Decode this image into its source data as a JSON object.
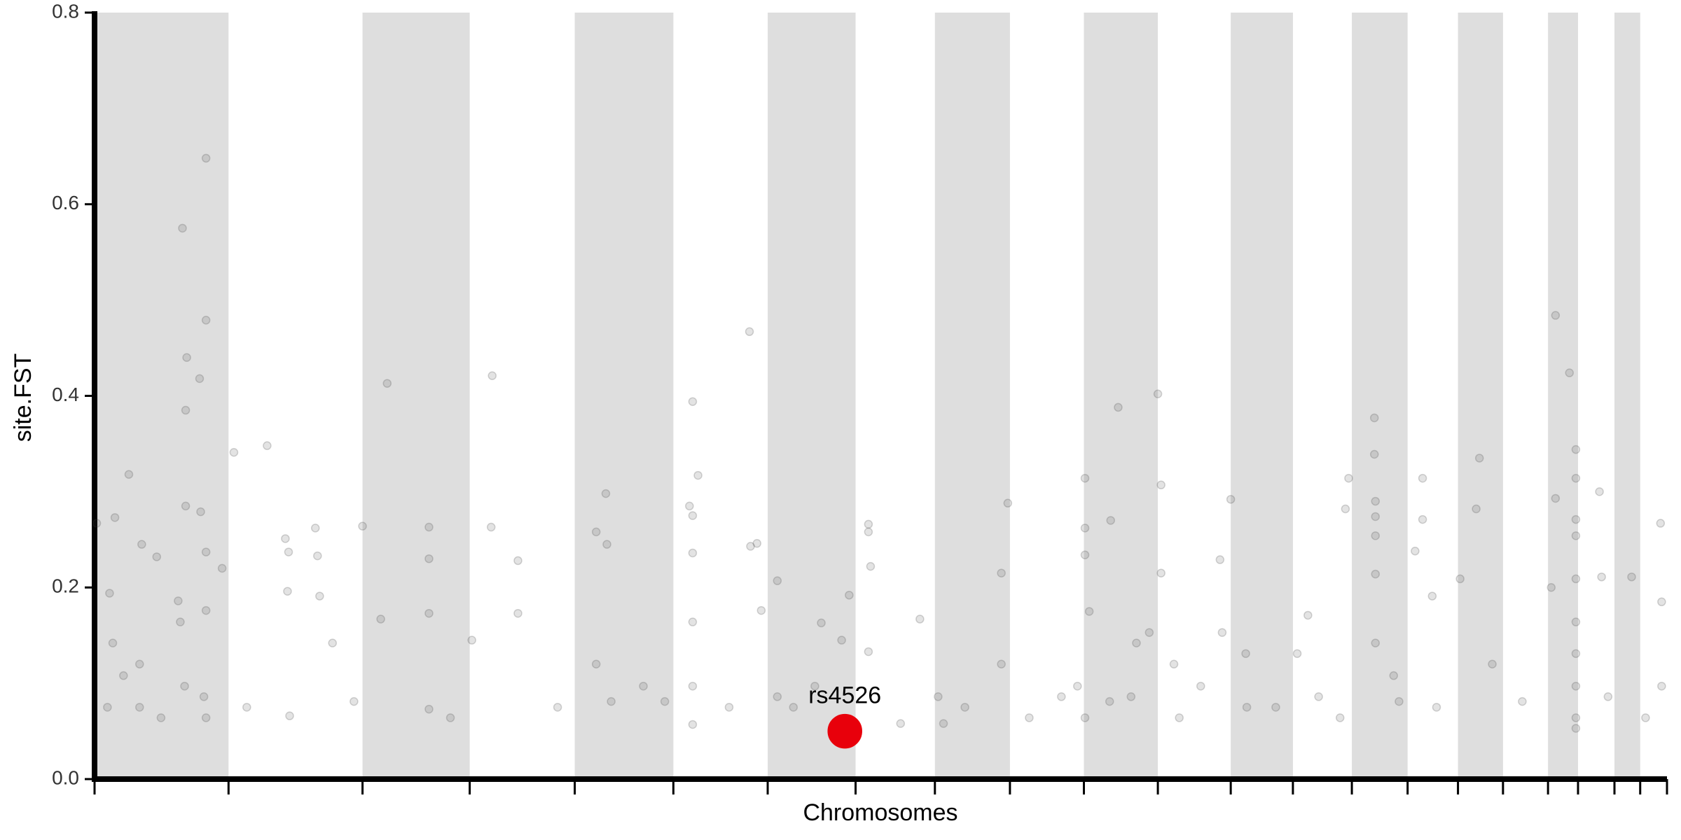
{
  "chart_data": {
    "type": "scatter",
    "xlabel": "Chromosomes",
    "ylabel": "site.FST",
    "xlim": [
      0,
      1467
    ],
    "ylim": [
      0,
      0.8
    ],
    "yticks": [
      {
        "value": 0,
        "label": "0.0"
      },
      0.2,
      0.4,
      0.6,
      0.8
    ],
    "xticks": [
      0,
      125,
      250,
      350,
      448,
      540,
      628,
      710,
      784,
      854,
      923,
      992,
      1060,
      1118,
      1173,
      1225,
      1272,
      1314,
      1356,
      1384,
      1418,
      1442,
      1467
    ],
    "xtick_labels": false,
    "band_color": "#dedede",
    "point_opacity": 0.15,
    "series": [
      {
        "color": "#444444",
        "x": [
          82,
          104,
          104,
          86,
          98,
          85,
          85,
          99,
          32,
          19,
          2,
          44,
          14,
          58,
          104,
          119,
          78,
          80,
          104,
          17,
          27,
          42,
          12,
          42,
          84,
          102,
          104,
          130,
          161,
          178,
          181,
          180,
          206,
          208,
          210,
          182,
          222,
          250,
          273,
          312,
          312,
          312,
          267,
          312,
          352,
          371,
          370,
          395,
          395,
          477,
          468,
          478,
          468,
          482,
          558,
          563,
          555,
          558,
          558,
          558,
          558,
          558,
          611,
          612,
          618,
          637,
          622,
          637,
          678,
          697,
          704,
          722,
          722,
          724,
          722,
          770,
          787,
          792,
          846,
          852,
          846,
          924,
          924,
          924,
          928,
          948,
          955,
          992,
          995,
          995,
          984,
          924,
          967,
          1060,
          1050,
          1052,
          1074,
          1132,
          1167,
          1170,
          1194,
          1194,
          1195,
          1195,
          1195,
          1195,
          1195,
          1212,
          1239,
          1239,
          1232,
          1248,
          1292,
          1289,
          1274,
          1304,
          1363,
          1376,
          1382,
          1382,
          1382,
          1382,
          1363,
          1359,
          1382,
          1382,
          1382,
          1382,
          1382,
          1382,
          1404,
          1406,
          1434,
          1461,
          1462,
          1462,
          62,
          142,
          242,
          332,
          432,
          512,
          532,
          592,
          652,
          672,
          752,
          812,
          872,
          902,
          1012,
          1032,
          1102,
          1142,
          1162,
          1252,
          1332,
          1412,
          1447,
          917,
          1007,
          947,
          972,
          1075,
          1122,
          1217
        ],
        "values": [
          0.575,
          0.648,
          0.479,
          0.44,
          0.418,
          0.385,
          0.285,
          0.279,
          0.318,
          0.273,
          0.267,
          0.245,
          0.194,
          0.232,
          0.237,
          0.22,
          0.186,
          0.164,
          0.176,
          0.142,
          0.108,
          0.12,
          0.075,
          0.075,
          0.097,
          0.086,
          0.064,
          0.341,
          0.348,
          0.251,
          0.237,
          0.196,
          0.262,
          0.233,
          0.191,
          0.066,
          0.142,
          0.264,
          0.413,
          0.263,
          0.23,
          0.173,
          0.167,
          0.073,
          0.145,
          0.421,
          0.263,
          0.173,
          0.228,
          0.298,
          0.258,
          0.245,
          0.12,
          0.081,
          0.394,
          0.317,
          0.285,
          0.275,
          0.236,
          0.164,
          0.097,
          0.057,
          0.467,
          0.243,
          0.246,
          0.207,
          0.176,
          0.086,
          0.163,
          0.145,
          0.192,
          0.266,
          0.258,
          0.222,
          0.133,
          0.167,
          0.086,
          0.058,
          0.215,
          0.288,
          0.12,
          0.314,
          0.262,
          0.234,
          0.175,
          0.27,
          0.388,
          0.402,
          0.307,
          0.215,
          0.153,
          0.064,
          0.086,
          0.292,
          0.229,
          0.153,
          0.131,
          0.171,
          0.282,
          0.314,
          0.377,
          0.339,
          0.29,
          0.274,
          0.254,
          0.214,
          0.142,
          0.108,
          0.314,
          0.271,
          0.238,
          0.191,
          0.335,
          0.282,
          0.209,
          0.12,
          0.484,
          0.424,
          0.344,
          0.314,
          0.271,
          0.254,
          0.293,
          0.2,
          0.209,
          0.164,
          0.131,
          0.097,
          0.064,
          0.053,
          0.3,
          0.211,
          0.211,
          0.267,
          0.185,
          0.097,
          0.064,
          0.075,
          0.081,
          0.064,
          0.075,
          0.097,
          0.081,
          0.075,
          0.075,
          0.097,
          0.058,
          0.075,
          0.064,
          0.086,
          0.064,
          0.097,
          0.075,
          0.086,
          0.064,
          0.075,
          0.081,
          0.086,
          0.064,
          0.097,
          0.12,
          0.081,
          0.142,
          0.075,
          0.131,
          0.081
        ]
      },
      {
        "name": "rs4526",
        "color": "#e8000b",
        "x": [
          700
        ],
        "values": [
          0.05
        ]
      }
    ]
  }
}
